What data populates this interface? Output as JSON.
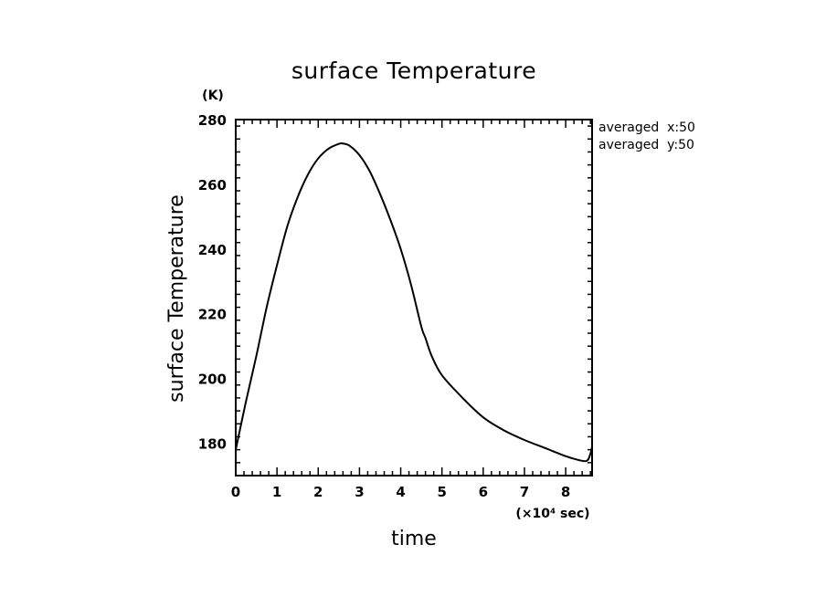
{
  "chart_data": {
    "type": "line",
    "title": "surface Temperature",
    "xlabel": "time",
    "ylabel": "surface Temperature",
    "x_unit": "(×10⁴ sec)",
    "y_unit": "(K)",
    "xlim": [
      0,
      8.64
    ],
    "ylim": [
      170,
      280
    ],
    "x_ticks": [
      0,
      1,
      2,
      3,
      4,
      5,
      6,
      7,
      8
    ],
    "y_ticks": [
      180,
      200,
      220,
      240,
      260,
      280
    ],
    "grid": false,
    "annotations": [
      "averaged  x:50",
      "averaged  y:50"
    ],
    "series": [
      {
        "x": [
          0.0,
          0.25,
          0.5,
          0.75,
          1.0,
          1.25,
          1.5,
          1.75,
          2.0,
          2.25,
          2.5,
          2.6,
          2.75,
          3.0,
          3.25,
          3.5,
          3.75,
          4.0,
          4.25,
          4.5,
          4.6,
          4.75,
          5.0,
          5.5,
          6.0,
          6.5,
          7.0,
          7.5,
          8.0,
          8.2,
          8.5,
          8.6,
          8.64
        ],
        "y": [
          178.0,
          193.0,
          207.0,
          222.0,
          235.0,
          247.0,
          256.0,
          263.0,
          268.0,
          271.0,
          272.5,
          272.6,
          272.0,
          269.0,
          264.0,
          257.0,
          249.0,
          240.0,
          229.0,
          216.0,
          212.5,
          207.0,
          201.0,
          194.0,
          188.0,
          184.0,
          181.0,
          178.5,
          176.0,
          175.2,
          174.5,
          176.8,
          179.0
        ]
      }
    ]
  }
}
